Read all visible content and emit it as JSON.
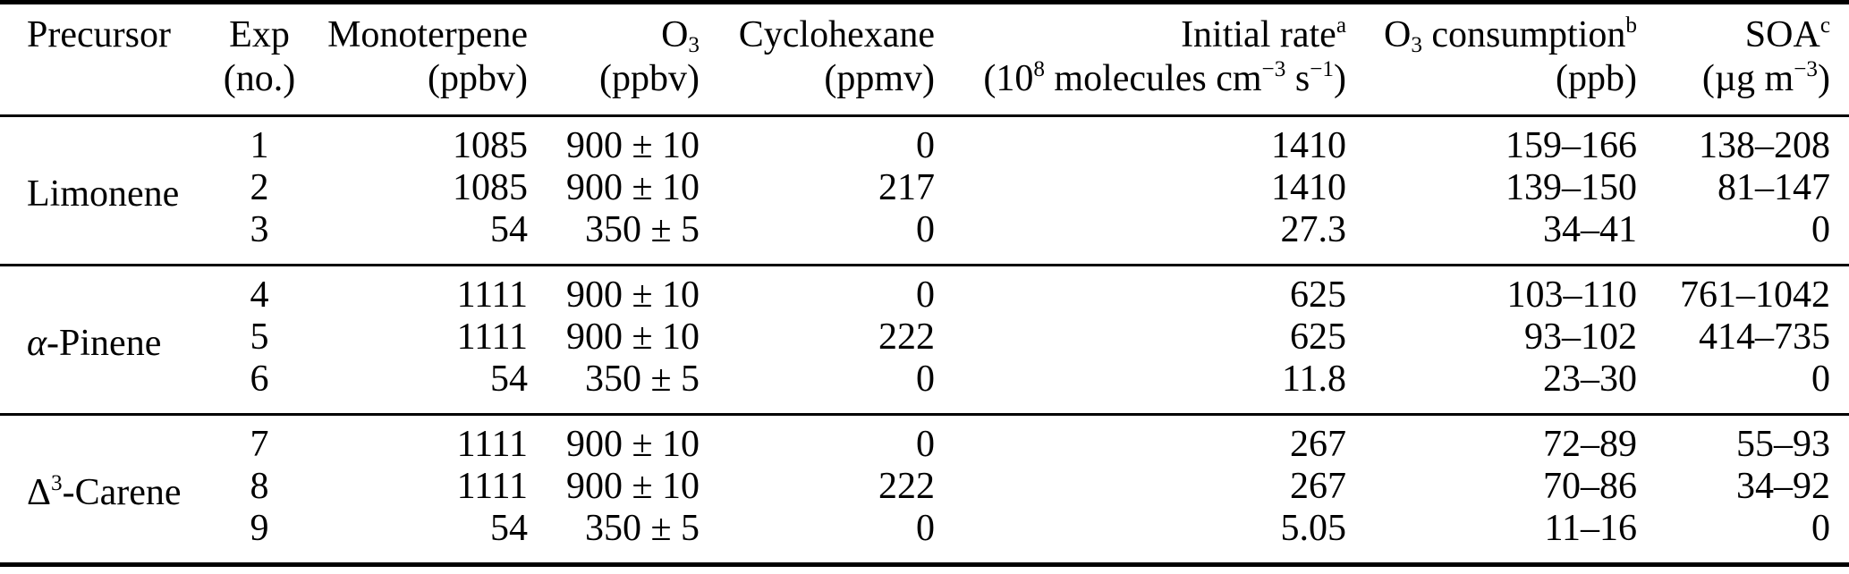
{
  "colors": {
    "background": "#ffffff",
    "text": "#000000",
    "rule": "#000000"
  },
  "table": {
    "columns": [
      {
        "line1": "Precursor",
        "line2": ""
      },
      {
        "line1": "Exp",
        "line2": "(no.)"
      },
      {
        "line1": "Monoterpene",
        "line2": "(ppbv)"
      },
      {
        "line1": "O_{3}",
        "line2": "(ppbv)"
      },
      {
        "line1": "Cyclohexane",
        "line2": "(ppmv)"
      },
      {
        "line1": "Initial rate^{a}",
        "line2": "(10^{8} molecules cm^{−3} s^{−1})"
      },
      {
        "line1": "O_{3} consumption^{b}",
        "line2": "(ppb)"
      },
      {
        "line1": "SOA^{c}",
        "line2": "(µg m^{−3})"
      }
    ],
    "groups": [
      {
        "precursor": "Limonene",
        "rows": [
          [
            "1",
            "1085",
            "900 ± 10",
            "0",
            "1410",
            "159–166",
            "138–208"
          ],
          [
            "2",
            "1085",
            "900 ± 10",
            "217",
            "1410",
            "139–150",
            "81–147"
          ],
          [
            "3",
            "54",
            "350 ± 5",
            "0",
            "27.3",
            "34–41",
            "0"
          ]
        ]
      },
      {
        "precursor": "*α*-Pinene",
        "rows": [
          [
            "4",
            "1111",
            "900 ± 10",
            "0",
            "625",
            "103–110",
            "761–1042"
          ],
          [
            "5",
            "1111",
            "900 ± 10",
            "222",
            "625",
            "93–102",
            "414–735"
          ],
          [
            "6",
            "54",
            "350 ± 5",
            "0",
            "11.8",
            "23–30",
            "0"
          ]
        ]
      },
      {
        "precursor": "Δ^{3}-Carene",
        "rows": [
          [
            "7",
            "1111",
            "900 ± 10",
            "0",
            "267",
            "72–89",
            "55–93"
          ],
          [
            "8",
            "1111",
            "900 ± 10",
            "222",
            "267",
            "70–86",
            "34–92"
          ],
          [
            "9",
            "54",
            "350 ± 5",
            "0",
            "5.05",
            "11–16",
            "0"
          ]
        ]
      }
    ]
  },
  "chart_data": {
    "type": "table",
    "title": "",
    "columns": [
      "Precursor",
      "Exp (no.)",
      "Monoterpene (ppbv)",
      "O3 (ppbv)",
      "Cyclohexane (ppmv)",
      "Initial rate (10^8 molecules cm^-3 s^-1)",
      "O3 consumption (ppb)",
      "SOA (ug m^-3)"
    ],
    "rows": [
      [
        "Limonene",
        "1",
        "1085",
        "900 ± 10",
        "0",
        "1410",
        "159–166",
        "138–208"
      ],
      [
        "Limonene",
        "2",
        "1085",
        "900 ± 10",
        "217",
        "1410",
        "139–150",
        "81–147"
      ],
      [
        "Limonene",
        "3",
        "54",
        "350 ± 5",
        "0",
        "27.3",
        "34–41",
        "0"
      ],
      [
        "α-Pinene",
        "4",
        "1111",
        "900 ± 10",
        "0",
        "625",
        "103–110",
        "761–1042"
      ],
      [
        "α-Pinene",
        "5",
        "1111",
        "900 ± 10",
        "222",
        "625",
        "93–102",
        "414–735"
      ],
      [
        "α-Pinene",
        "6",
        "54",
        "350 ± 5",
        "0",
        "11.8",
        "23–30",
        "0"
      ],
      [
        "Δ3-Carene",
        "7",
        "1111",
        "900 ± 10",
        "0",
        "267",
        "72–89",
        "55–93"
      ],
      [
        "Δ3-Carene",
        "8",
        "1111",
        "900 ± 10",
        "222",
        "267",
        "70–86",
        "34–92"
      ],
      [
        "Δ3-Carene",
        "9",
        "54",
        "350 ± 5",
        "0",
        "5.05",
        "11–16",
        "0"
      ]
    ]
  }
}
